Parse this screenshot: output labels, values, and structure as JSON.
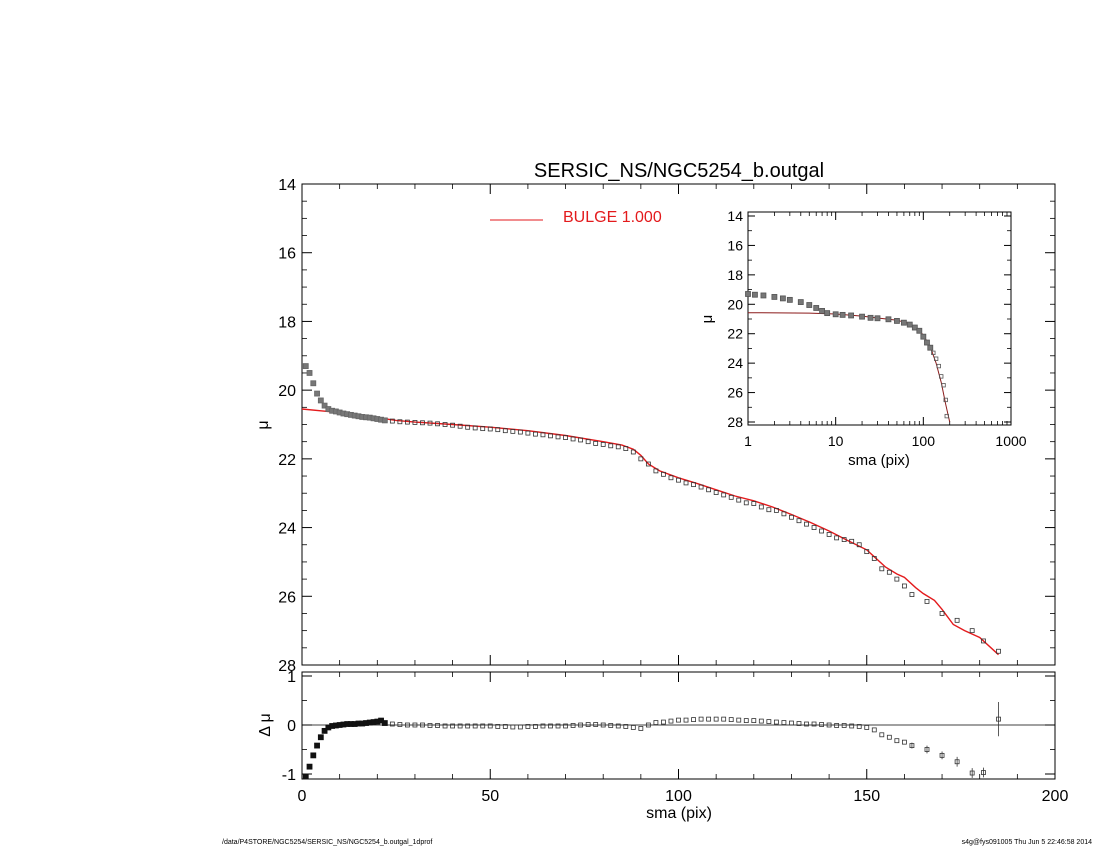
{
  "figure": {
    "title": "SERSIC_NS/NGC5254_b.outgal",
    "footer_left": "/data/P4STORE/NGC5254/SERSIC_NS/NGC5254_b.outgal_1dprof",
    "footer_right": "s4g@fys091005  Thu Jun  5 22:46:58 2014"
  },
  "colors": {
    "model": "#e31a1c",
    "data_marker": "#555555",
    "axes": "#000000",
    "inset_model": "#8b1a1a"
  },
  "chart_data": [
    {
      "id": "main",
      "type": "scatter",
      "title": "SERSIC_NS/NGC5254_b.outgal",
      "ylabel": "μ",
      "xlim": [
        0,
        200
      ],
      "ylim": [
        28,
        14
      ],
      "y_inverted": true,
      "xticks": [
        0,
        50,
        100,
        150,
        200
      ],
      "yticks": [
        14,
        16,
        18,
        20,
        22,
        24,
        26,
        28
      ],
      "ytick_labels": [
        "14",
        "16",
        "18",
        "20",
        "22",
        "24",
        "26",
        "28"
      ],
      "legend": {
        "entries": [
          {
            "name": "BULGE  1.000",
            "color": "#e31a1c"
          }
        ],
        "placement": "top-center"
      },
      "series": [
        {
          "name": "data",
          "kind": "points",
          "x": [
            1,
            2,
            3,
            4,
            5,
            6,
            7,
            8,
            9,
            10,
            11,
            12,
            13,
            14,
            15,
            16,
            17,
            18,
            19,
            20,
            21,
            22,
            24,
            26,
            28,
            30,
            32,
            34,
            36,
            38,
            40,
            42,
            44,
            46,
            48,
            50,
            52,
            54,
            56,
            58,
            60,
            62,
            64,
            66,
            68,
            70,
            72,
            74,
            76,
            78,
            80,
            82,
            84,
            86,
            88,
            90,
            92,
            94,
            96,
            98,
            100,
            102,
            104,
            106,
            108,
            110,
            112,
            114,
            116,
            118,
            120,
            122,
            124,
            126,
            128,
            130,
            132,
            134,
            136,
            138,
            140,
            142,
            144,
            146,
            148,
            150,
            152,
            154,
            156,
            158,
            160,
            162,
            166,
            170,
            174,
            178,
            181,
            185
          ],
          "y": [
            19.3,
            19.5,
            19.8,
            20.1,
            20.3,
            20.45,
            20.55,
            20.6,
            20.62,
            20.65,
            20.68,
            20.7,
            20.72,
            20.74,
            20.76,
            20.78,
            20.79,
            20.8,
            20.82,
            20.84,
            20.86,
            20.88,
            20.9,
            20.92,
            20.93,
            20.94,
            20.95,
            20.96,
            20.98,
            21.0,
            21.02,
            21.05,
            21.08,
            21.1,
            21.12,
            21.13,
            21.15,
            21.18,
            21.2,
            21.22,
            21.25,
            21.28,
            21.3,
            21.33,
            21.36,
            21.38,
            21.42,
            21.45,
            21.5,
            21.55,
            21.58,
            21.62,
            21.65,
            21.7,
            21.8,
            22.0,
            22.15,
            22.35,
            22.45,
            22.55,
            22.62,
            22.7,
            22.75,
            22.82,
            22.9,
            22.98,
            23.05,
            23.12,
            23.2,
            23.28,
            23.3,
            23.4,
            23.48,
            23.5,
            23.6,
            23.7,
            23.8,
            23.9,
            24.0,
            24.1,
            24.2,
            24.3,
            24.35,
            24.4,
            24.5,
            24.7,
            24.9,
            25.2,
            25.3,
            25.5,
            25.7,
            25.95,
            26.15,
            26.5,
            26.7,
            27.0,
            27.3,
            27.6
          ]
        },
        {
          "name": "BULGE  1.000",
          "kind": "line",
          "x": [
            0,
            5,
            10,
            15,
            20,
            25,
            30,
            40,
            50,
            60,
            70,
            80,
            85,
            88,
            90,
            92,
            95,
            100,
            105,
            110,
            115,
            120,
            125,
            130,
            135,
            140,
            145,
            150,
            152,
            155,
            158,
            160,
            163,
            165,
            168,
            170,
            173,
            176,
            180,
            185
          ],
          "y": [
            20.55,
            20.6,
            20.65,
            20.72,
            20.8,
            20.88,
            20.93,
            21.0,
            21.08,
            21.18,
            21.32,
            21.5,
            21.6,
            21.72,
            21.9,
            22.15,
            22.35,
            22.55,
            22.72,
            22.9,
            23.08,
            23.22,
            23.4,
            23.62,
            23.85,
            24.1,
            24.38,
            24.65,
            24.85,
            25.15,
            25.35,
            25.45,
            25.75,
            25.92,
            26.12,
            26.38,
            26.82,
            27.0,
            27.2,
            27.7
          ]
        }
      ]
    },
    {
      "id": "residual",
      "type": "scatter",
      "ylabel": "Δ μ",
      "xlabel": "sma (pix)",
      "xlim": [
        0,
        200
      ],
      "ylim": [
        -1,
        1
      ],
      "xticks": [
        0,
        50,
        100,
        150,
        200
      ],
      "xtick_labels": [
        "0",
        "50",
        "100",
        "150",
        "200"
      ],
      "yticks": [
        -1,
        0,
        1
      ],
      "ytick_labels": [
        "-1",
        "0",
        "1"
      ],
      "zero_line": true,
      "series": [
        {
          "name": "residual",
          "x": [
            1,
            2,
            3,
            4,
            5,
            6,
            7,
            8,
            9,
            10,
            11,
            12,
            13,
            14,
            15,
            16,
            17,
            18,
            19,
            20,
            21,
            22,
            24,
            26,
            28,
            30,
            32,
            34,
            36,
            38,
            40,
            42,
            44,
            46,
            48,
            50,
            52,
            54,
            56,
            58,
            60,
            62,
            64,
            66,
            68,
            70,
            72,
            74,
            76,
            78,
            80,
            82,
            84,
            86,
            88,
            90,
            92,
            94,
            96,
            98,
            100,
            102,
            104,
            106,
            108,
            110,
            112,
            114,
            116,
            118,
            120,
            122,
            124,
            126,
            128,
            130,
            132,
            134,
            136,
            138,
            140,
            142,
            144,
            146,
            148,
            150,
            152,
            154,
            156,
            158,
            160,
            162,
            166,
            170,
            174,
            178,
            181,
            185
          ],
          "y": [
            -1.05,
            -0.85,
            -0.62,
            -0.42,
            -0.25,
            -0.12,
            -0.05,
            -0.02,
            -0.01,
            0.0,
            0.01,
            0.02,
            0.02,
            0.02,
            0.03,
            0.03,
            0.04,
            0.05,
            0.06,
            0.07,
            0.09,
            0.04,
            0.02,
            0.01,
            0.0,
            0.0,
            0.0,
            -0.01,
            -0.01,
            -0.02,
            -0.02,
            -0.02,
            -0.02,
            -0.02,
            -0.02,
            -0.02,
            -0.03,
            -0.03,
            -0.04,
            -0.04,
            -0.03,
            -0.03,
            -0.02,
            -0.02,
            -0.02,
            -0.02,
            -0.01,
            0.0,
            0.01,
            0.01,
            0.0,
            -0.01,
            -0.02,
            -0.03,
            -0.05,
            -0.07,
            0.0,
            0.05,
            0.06,
            0.08,
            0.1,
            0.1,
            0.11,
            0.12,
            0.12,
            0.12,
            0.12,
            0.11,
            0.1,
            0.09,
            0.09,
            0.08,
            0.07,
            0.06,
            0.05,
            0.04,
            0.03,
            0.02,
            0.02,
            0.01,
            0.0,
            -0.01,
            -0.01,
            -0.02,
            -0.03,
            -0.05,
            -0.1,
            -0.2,
            -0.25,
            -0.32,
            -0.35,
            -0.42,
            -0.5,
            -0.62,
            -0.75,
            -0.98,
            -0.97,
            0.12
          ],
          "errors": [
            0,
            0,
            0,
            0,
            0,
            0,
            0,
            0,
            0,
            0,
            0,
            0,
            0,
            0,
            0,
            0,
            0,
            0,
            0,
            0,
            0,
            0,
            0,
            0,
            0,
            0,
            0,
            0,
            0,
            0,
            0,
            0,
            0,
            0,
            0,
            0,
            0,
            0,
            0,
            0,
            0,
            0,
            0,
            0,
            0,
            0,
            0,
            0,
            0,
            0,
            0,
            0,
            0,
            0,
            0,
            0,
            0,
            0,
            0,
            0,
            0,
            0,
            0,
            0,
            0,
            0,
            0,
            0,
            0,
            0,
            0,
            0,
            0,
            0,
            0,
            0,
            0,
            0,
            0,
            0,
            0,
            0,
            0,
            0,
            0,
            0,
            0,
            0,
            0,
            0,
            0,
            0.06,
            0.08,
            0.08,
            0.1,
            0.1,
            0.1,
            0.35
          ]
        }
      ]
    },
    {
      "id": "inset",
      "type": "scatter",
      "ylabel": "μ",
      "xlabel": "sma (pix)",
      "xscale": "log",
      "xlim": [
        1,
        1000
      ],
      "ylim": [
        28,
        14
      ],
      "y_inverted": true,
      "xticks": [
        1,
        10,
        100,
        1000
      ],
      "xtick_labels": [
        "1",
        "10",
        "100",
        "1000"
      ],
      "yticks": [
        14,
        16,
        18,
        20,
        22,
        24,
        26,
        28
      ],
      "ytick_labels": [
        "14",
        "16",
        "18",
        "20",
        "22",
        "24",
        "26",
        "28"
      ],
      "series": [
        {
          "name": "data",
          "x": [
            1,
            1.2,
            1.5,
            2,
            2.5,
            3,
            4,
            5,
            6,
            7,
            8,
            10,
            12,
            15,
            20,
            25,
            30,
            40,
            50,
            60,
            70,
            80,
            90,
            100,
            110,
            120,
            130,
            140,
            150,
            160,
            170,
            180,
            185
          ],
          "y": [
            19.3,
            19.35,
            19.4,
            19.5,
            19.6,
            19.7,
            19.85,
            20.05,
            20.25,
            20.45,
            20.6,
            20.68,
            20.72,
            20.76,
            20.84,
            20.92,
            20.95,
            21.02,
            21.13,
            21.25,
            21.38,
            21.58,
            21.8,
            22.2,
            22.6,
            22.95,
            23.3,
            23.7,
            24.2,
            24.9,
            25.5,
            26.5,
            27.6
          ]
        },
        {
          "name": "model",
          "kind": "line",
          "x": [
            1,
            5,
            10,
            20,
            30,
            50,
            70,
            90,
            100,
            120,
            140,
            160,
            180,
            200
          ],
          "y": [
            20.57,
            20.6,
            20.66,
            20.8,
            20.93,
            21.08,
            21.32,
            21.78,
            22.1,
            22.9,
            24.0,
            25.3,
            26.8,
            28.0
          ]
        }
      ]
    }
  ]
}
